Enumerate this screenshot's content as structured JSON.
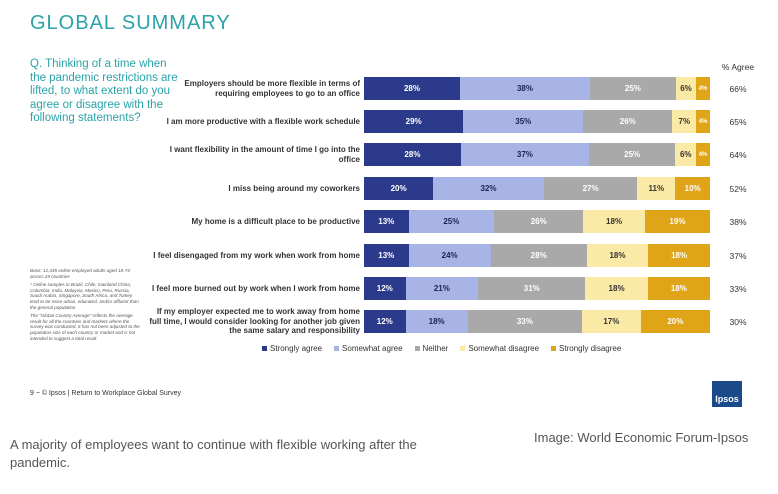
{
  "slide": {
    "title": "GLOBAL SUMMARY",
    "question": "Q. Thinking of a time when the pandemic restrictions are lifted, to what extent do you agree or disagree with the following statements?",
    "pct_agree_header": "% Agree",
    "base_note": [
      "Base: 12,445 online employed adults aged 18-74 across 29 countries",
      "* Online samples in Brazil, Chile, mainland China, Colombia, India, Malaysia, Mexico, Peru, Russia, Saudi Arabia, Singapore, South Africa, and Turkey tend to be more urban, educated, and/or affluent than the general population",
      "The \"Global Country Average\" reflects the average result for all the countries and markets where the survey was conducted. It has not been adjusted to the population size of each country or market and is not intended to suggest a total result"
    ],
    "footer": "9 ~ © Ipsos | Return to Workplace Global Survey",
    "logo_text": "Ipsos"
  },
  "chart_data": {
    "type": "bar",
    "orientation": "horizontal",
    "stacked": true,
    "legend_position": "bottom",
    "colors": [
      "#2c3a8c",
      "#a9b4e6",
      "#a9a9a9",
      "#fbe9a6",
      "#e0a418"
    ],
    "categories": [
      "Employers should be more flexible in terms of requiring employees to go to an office",
      "I am more productive with a flexible work schedule",
      "I want flexibility in the amount of time I go into the office",
      "I miss being around my coworkers",
      "My home is a difficult place to be productive",
      "I feel disengaged from my work when work from home",
      "I feel more burned out by work when I work from home",
      "If my employer expected me to work away from home full time, I would consider looking for another job given the same salary and responsibility"
    ],
    "series": [
      {
        "name": "Strongly agree",
        "values": [
          28,
          29,
          28,
          20,
          13,
          13,
          12,
          12
        ]
      },
      {
        "name": "Somewhat agree",
        "values": [
          38,
          35,
          37,
          32,
          25,
          24,
          21,
          18
        ]
      },
      {
        "name": "Neither",
        "values": [
          25,
          26,
          25,
          27,
          26,
          28,
          31,
          33
        ]
      },
      {
        "name": "Somewhat disagree",
        "values": [
          6,
          7,
          6,
          11,
          18,
          18,
          18,
          17
        ]
      },
      {
        "name": "Strongly disagree",
        "values": [
          4,
          4,
          4,
          10,
          19,
          18,
          18,
          20
        ]
      }
    ],
    "pct_agree": [
      "66%",
      "65%",
      "64%",
      "52%",
      "38%",
      "37%",
      "33%",
      "30%"
    ]
  },
  "caption": "A majority of employees want to continue with flexible working after the pandemic.",
  "credit": "Image: World Economic Forum-Ipsos"
}
